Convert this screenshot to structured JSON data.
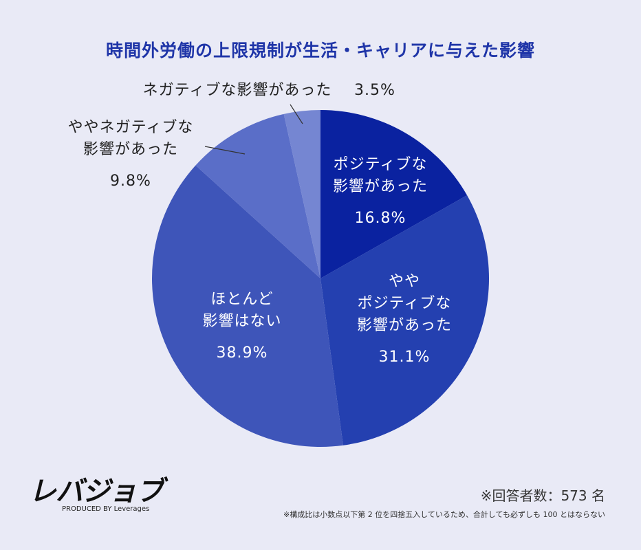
{
  "chart_data": {
    "type": "pie",
    "title": "時間外労働の上限規制が生活・キャリアに与えた影響",
    "categories": [
      "ポジティブな\n影響があった",
      "やや\nポジティブな\n影響があった",
      "ほとんど\n影響はない",
      "ややネガティブな\n影響があった",
      "ネガティブな影響があった"
    ],
    "values": [
      16.8,
      31.1,
      38.9,
      9.8,
      3.5
    ],
    "value_labels": [
      "16.8%",
      "31.1%",
      "38.9%",
      "9.8%",
      "3.5%"
    ],
    "colors": [
      "#0a22a0",
      "#2440b0",
      "#3e55b9",
      "#5a6ec8",
      "#7586d2"
    ],
    "annotations": [
      "※回答者数：573 名",
      "※構成比は小数点以下第 2 位を四捨五入しているため、合計しても必ずしも 100 とはならない"
    ]
  },
  "brand": {
    "logo": "レバジョブ",
    "tagline": "PRODUCED BY Leverages"
  }
}
